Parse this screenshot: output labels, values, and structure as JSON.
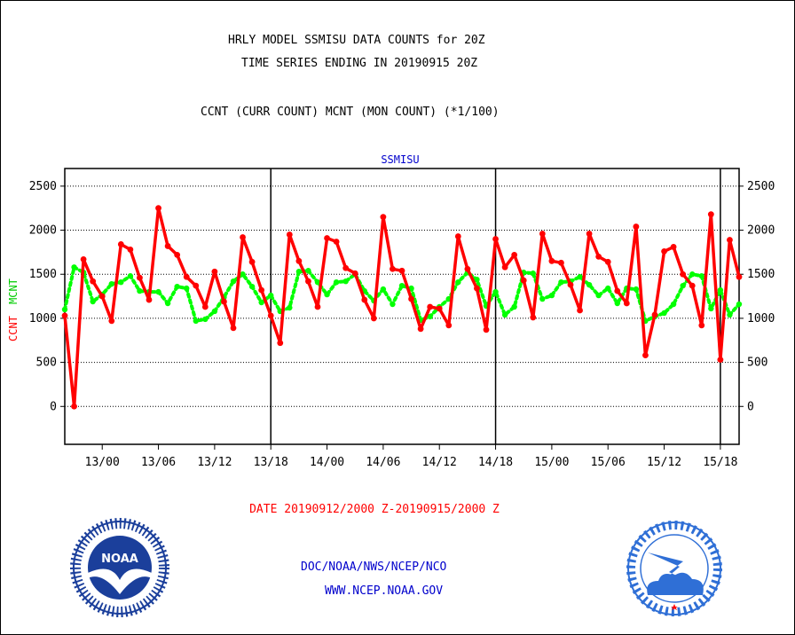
{
  "chart_data": {
    "type": "line",
    "title": "HRLY MODEL SSMISU DATA COUNTS for 20Z",
    "subtitle": "TIME SERIES ENDING IN 20190915 20Z",
    "description_line": "CCNT (CURR COUNT) MCNT (MON COUNT) (*1/100)",
    "panel_label": "SSMISU",
    "ylabel_left": "CCNT",
    "ylabel_right": "MCNT",
    "xlabel": "DATE 20190912/2000 Z-20190915/2000 Z",
    "ylim": [
      -430,
      2700
    ],
    "yticks": [
      2500,
      2000,
      1500,
      1000,
      500,
      0
    ],
    "ytick_labels": [
      "2500",
      "2000",
      "1500",
      "1000",
      "500",
      "0"
    ],
    "xlim": [
      0,
      72
    ],
    "xticks": [
      4,
      10,
      16,
      22,
      28,
      34,
      40,
      46,
      52,
      58,
      64,
      70
    ],
    "xtick_labels": [
      "13/00",
      "13/06",
      "13/12",
      "13/18",
      "14/00",
      "14/06",
      "14/12",
      "14/18",
      "15/00",
      "15/06",
      "15/12",
      "15/18"
    ],
    "day_dividers": [
      22,
      46,
      70
    ],
    "grid": true,
    "series": [
      {
        "name": "CCNT",
        "color": "#ff0000",
        "style": "solid",
        "x": [
          0,
          1,
          2,
          3,
          4,
          5,
          6,
          7,
          8,
          9,
          10,
          11,
          12,
          13,
          14,
          15,
          16,
          17,
          18,
          19,
          20,
          21,
          22,
          23,
          24,
          25,
          26,
          27,
          28,
          29,
          30,
          31,
          32,
          33,
          34,
          35,
          36,
          37,
          38,
          39,
          40,
          41,
          42,
          43,
          44,
          45,
          46,
          47,
          48,
          49,
          50,
          51,
          52,
          53,
          54,
          55,
          56,
          57,
          58,
          59,
          60,
          61,
          62,
          63,
          64,
          65,
          66,
          67,
          68,
          69,
          70,
          71,
          72
        ],
        "values": [
          1030,
          0,
          1670,
          1420,
          1250,
          970,
          1840,
          1780,
          1460,
          1210,
          2250,
          1820,
          1720,
          1470,
          1370,
          1130,
          1530,
          1190,
          890,
          1920,
          1640,
          1320,
          1030,
          720,
          1950,
          1650,
          1420,
          1130,
          1910,
          1870,
          1570,
          1510,
          1210,
          1000,
          2150,
          1560,
          1540,
          1220,
          880,
          1130,
          1110,
          920,
          1930,
          1560,
          1340,
          870,
          1900,
          1580,
          1720,
          1430,
          1010,
          1960,
          1650,
          1630,
          1380,
          1090,
          1960,
          1700,
          1640,
          1310,
          1170,
          2040,
          580,
          1040,
          1760,
          1810,
          1500,
          1370,
          920,
          2180,
          530,
          1890,
          1470
        ]
      },
      {
        "name": "MCNT",
        "color": "#00ff00",
        "style": "dotted",
        "x": [
          0,
          1,
          2,
          3,
          4,
          5,
          6,
          7,
          8,
          9,
          10,
          11,
          12,
          13,
          14,
          15,
          16,
          17,
          18,
          19,
          20,
          21,
          22,
          23,
          24,
          25,
          26,
          27,
          28,
          29,
          30,
          31,
          32,
          33,
          34,
          35,
          36,
          37,
          38,
          39,
          40,
          41,
          42,
          43,
          44,
          45,
          46,
          47,
          48,
          49,
          50,
          51,
          52,
          53,
          54,
          55,
          56,
          57,
          58,
          59,
          60,
          61,
          62,
          63,
          64,
          65,
          66,
          67,
          68,
          69,
          70,
          71,
          72
        ],
        "values": [
          1100,
          1580,
          1520,
          1190,
          1270,
          1390,
          1410,
          1480,
          1310,
          1300,
          1300,
          1170,
          1360,
          1340,
          970,
          990,
          1080,
          1240,
          1420,
          1500,
          1360,
          1180,
          1260,
          1080,
          1120,
          1530,
          1540,
          1410,
          1270,
          1410,
          1420,
          1500,
          1310,
          1200,
          1330,
          1160,
          1370,
          1340,
          980,
          1020,
          1130,
          1220,
          1410,
          1520,
          1440,
          1140,
          1300,
          1040,
          1130,
          1520,
          1510,
          1220,
          1260,
          1410,
          1420,
          1470,
          1380,
          1260,
          1340,
          1170,
          1340,
          1330,
          970,
          1020,
          1060,
          1160,
          1370,
          1500,
          1480,
          1110,
          1320,
          1040,
          1160
        ]
      }
    ]
  },
  "footer": {
    "line1": "DOC/NOAA/NWS/NCEP/NCO",
    "line2": "WWW.NCEP.NOAA.GOV"
  },
  "logos": {
    "left_icon": "noaa-logo-icon",
    "left_wordmark": "NOAA",
    "right_icon": "national-weather-service-logo-icon"
  },
  "colors": {
    "ccnt": "#ff0000",
    "mcnt": "#00ff00",
    "blue_text": "#0000cc",
    "red_text": "#ff0000",
    "noaa_blue": "#1b3f9b",
    "nws_blue": "#2f6fd6"
  }
}
